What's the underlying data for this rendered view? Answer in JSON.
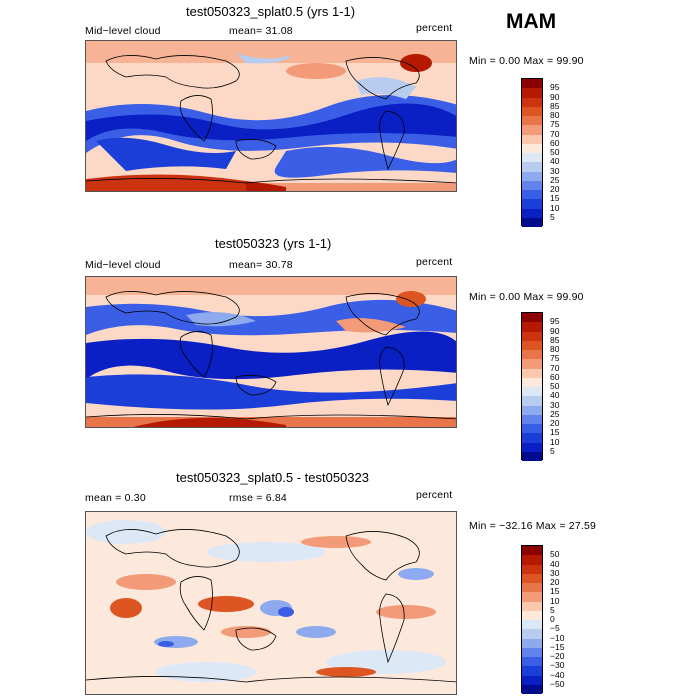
{
  "season": "MAM",
  "panels": [
    {
      "title": "test050323_splat0.5 (yrs 1-1)",
      "left_label": "Mid−level cloud",
      "mid_label": "mean=  31.08",
      "units": "percent",
      "minmax": "Min =    0.00  Max =   99.90",
      "colorbar": {
        "labels": [
          "95",
          "90",
          "85",
          "80",
          "75",
          "70",
          "60",
          "50",
          "40",
          "30",
          "25",
          "20",
          "15",
          "10",
          "5"
        ],
        "colors": [
          "#8b0000",
          "#b51a00",
          "#cc3311",
          "#dd5522",
          "#e8744a",
          "#f39a78",
          "#fbc7ad",
          "#fde8dc",
          "#dde8f7",
          "#b8ccf0",
          "#8eaaee",
          "#6183ea",
          "#3a5ee6",
          "#1b3ed9",
          "#0a1fc4",
          "#000a8c"
        ]
      }
    },
    {
      "title": "test050323 (yrs 1-1)",
      "left_label": "Mid−level cloud",
      "mid_label": "mean=  30.78",
      "units": "percent",
      "minmax": "Min =    0.00  Max =   99.90",
      "colorbar": {
        "labels": [
          "95",
          "90",
          "85",
          "80",
          "75",
          "70",
          "60",
          "50",
          "40",
          "30",
          "25",
          "20",
          "15",
          "10",
          "5"
        ],
        "colors": [
          "#8b0000",
          "#b51a00",
          "#cc3311",
          "#dd5522",
          "#e8744a",
          "#f39a78",
          "#fbc7ad",
          "#fde8dc",
          "#dde8f7",
          "#b8ccf0",
          "#8eaaee",
          "#6183ea",
          "#3a5ee6",
          "#1b3ed9",
          "#0a1fc4",
          "#000a8c"
        ]
      }
    },
    {
      "title": "test050323_splat0.5 - test050323",
      "left_label": "mean =    0.30",
      "mid_label": "rmse =    6.84",
      "units": "percent",
      "minmax": "Min = −32.16  Max =   27.59",
      "colorbar": {
        "labels": [
          "50",
          "40",
          "30",
          "20",
          "15",
          "10",
          "5",
          "0",
          "−5",
          "−10",
          "−15",
          "−20",
          "−30",
          "−40",
          "−50"
        ],
        "colors": [
          "#8b0000",
          "#b51a00",
          "#cc3311",
          "#dd5522",
          "#e8744a",
          "#f39a78",
          "#fbc7ad",
          "#fde8dc",
          "#dde8f7",
          "#b8ccf0",
          "#8eaaee",
          "#6183ea",
          "#3a5ee6",
          "#1b3ed9",
          "#0a1fc4",
          "#000a8c"
        ]
      }
    }
  ]
}
